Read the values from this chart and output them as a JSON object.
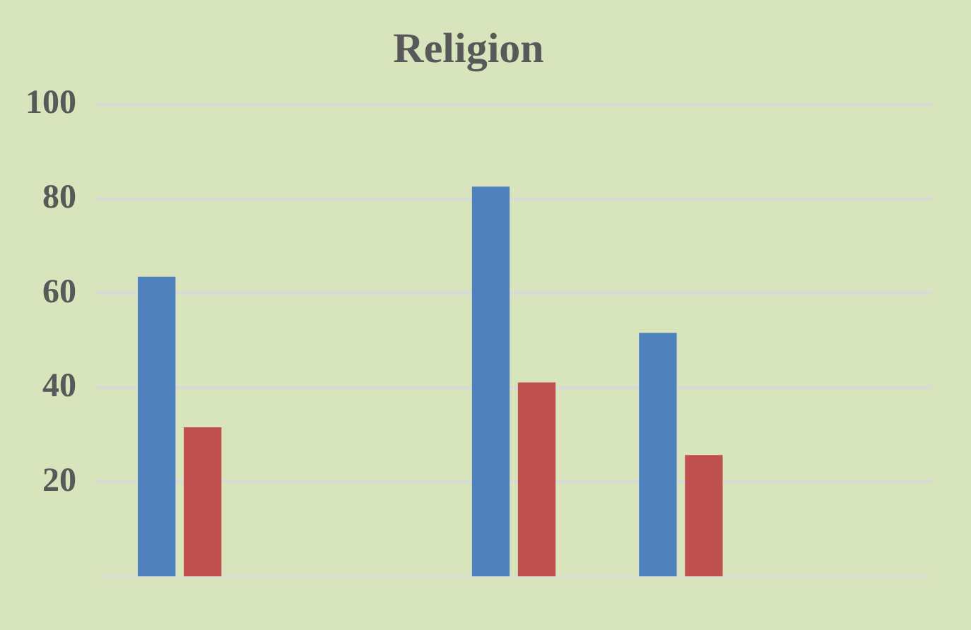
{
  "chart_data": {
    "type": "bar",
    "title": "Religion",
    "categories": [
      null,
      null,
      null,
      null,
      null
    ],
    "series": [
      {
        "color": "#4f81bd",
        "values": [
          63.5,
          null,
          82.6,
          51.6,
          null
        ]
      },
      {
        "color": "#c0504d",
        "values": [
          31.6,
          null,
          41.1,
          25.7,
          null
        ]
      }
    ],
    "ylim": [
      0,
      100
    ],
    "yticks": [
      20,
      40,
      60,
      80,
      100
    ],
    "grid": "y",
    "legend": false
  }
}
